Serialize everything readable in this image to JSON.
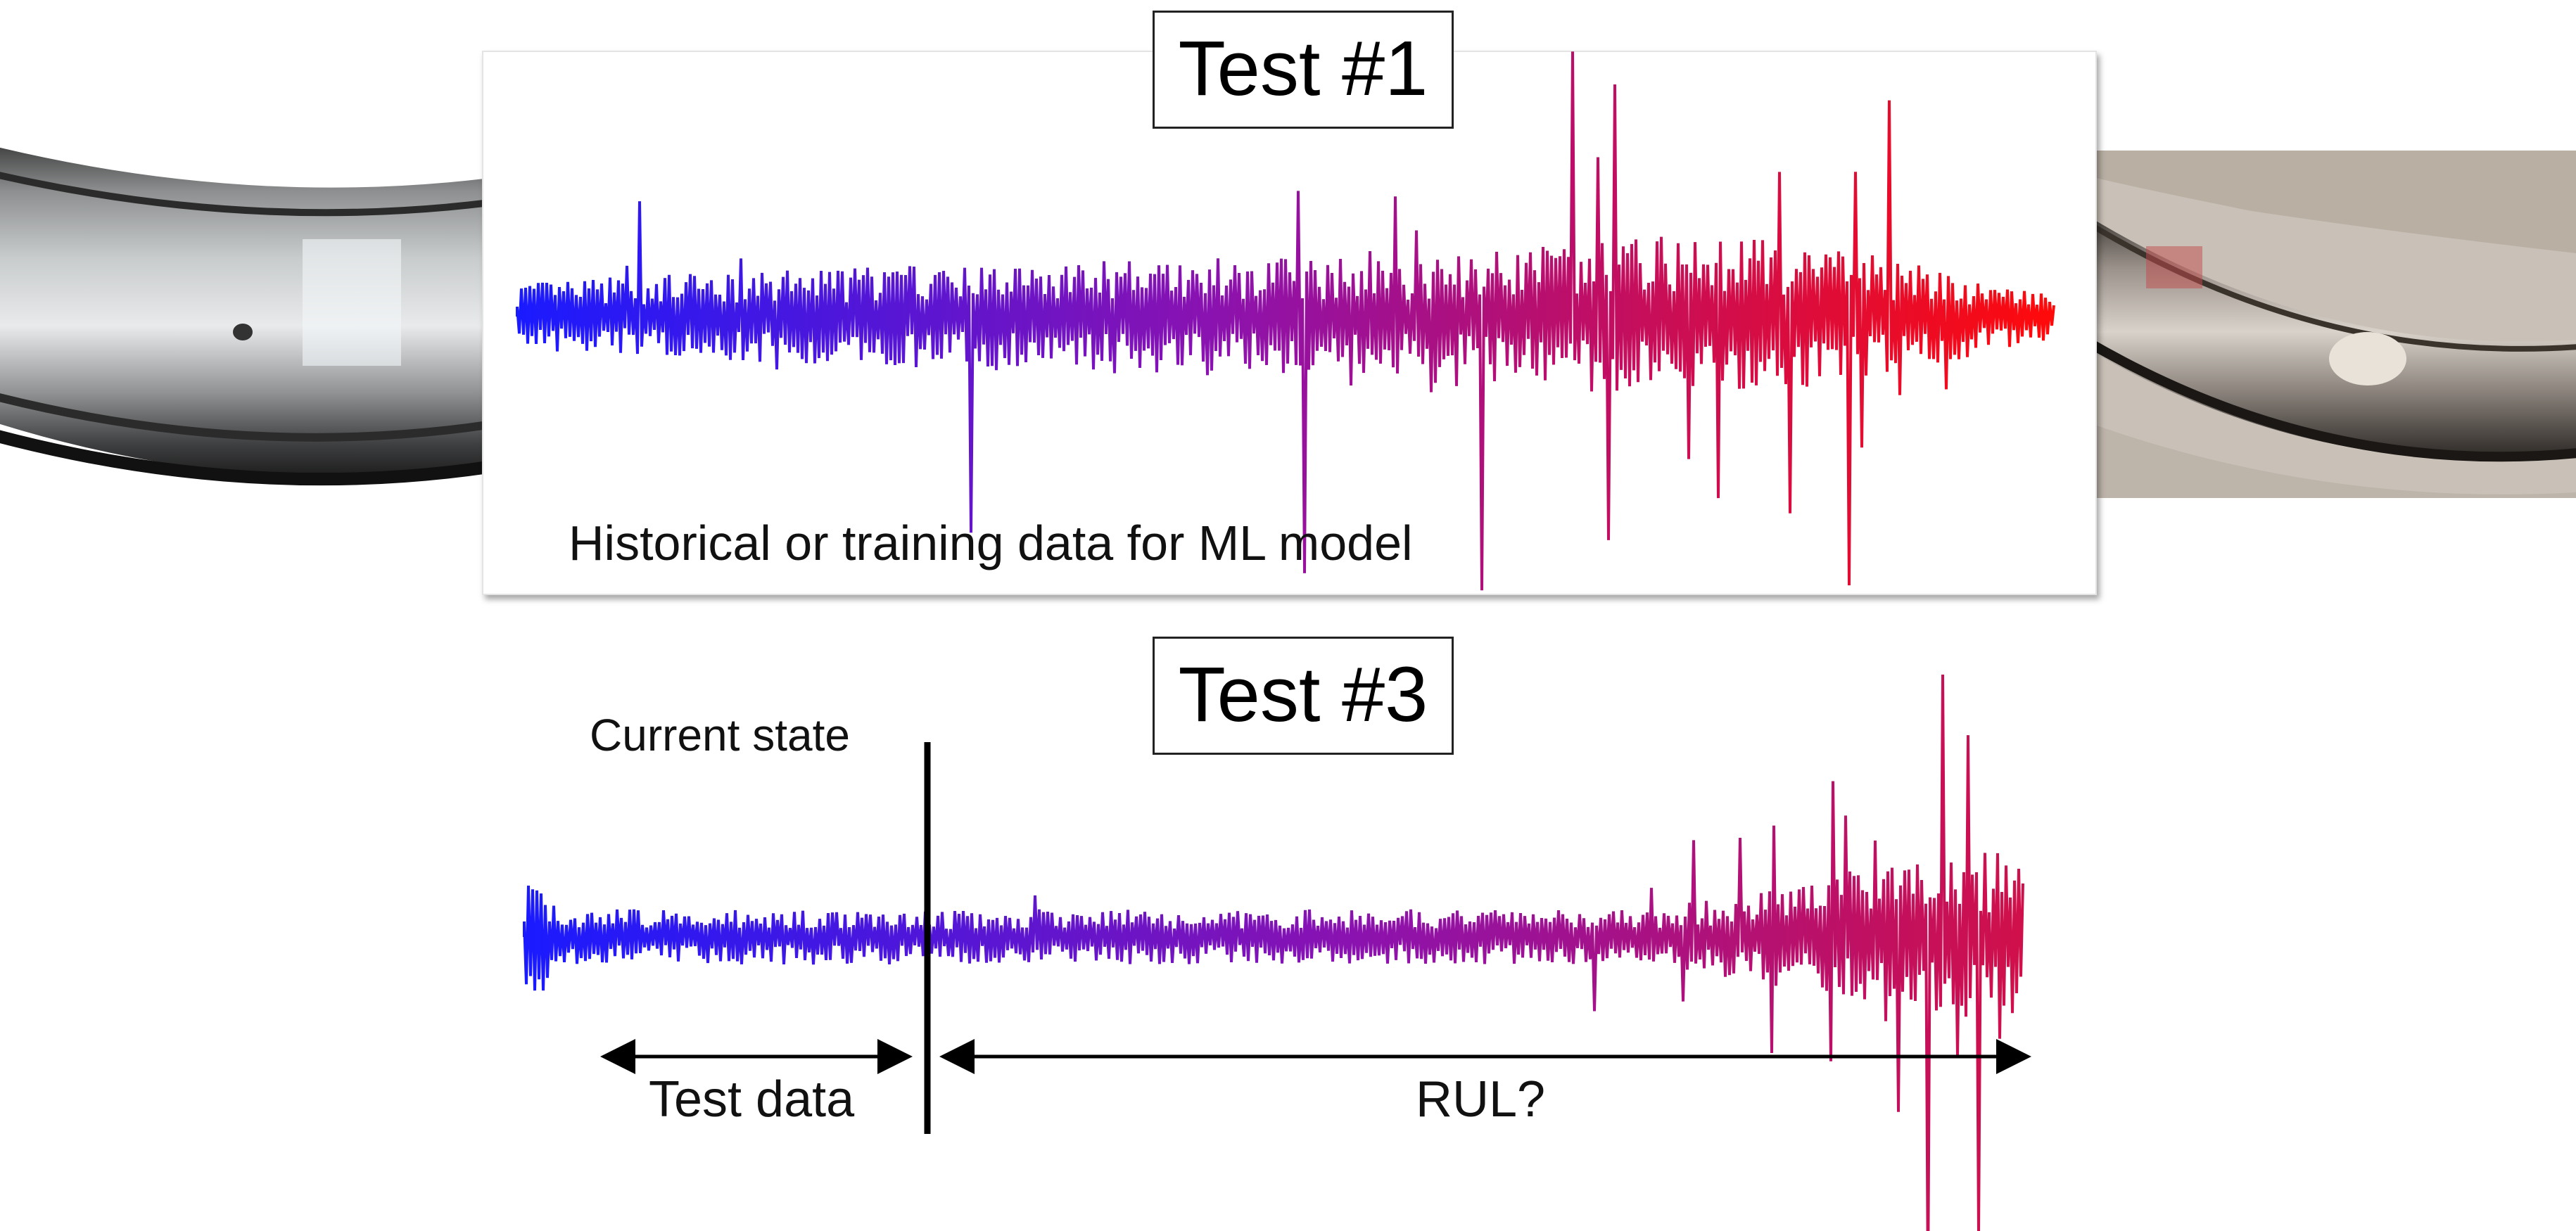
{
  "test1": {
    "title": "Test #1",
    "caption": "Historical or training data for ML model"
  },
  "test3": {
    "title": "Test #3",
    "current_state_label": "Current state",
    "test_data_label": "Test data",
    "rul_label": "RUL?"
  },
  "images": {
    "left": "healthy bearing outer race",
    "right": "damaged bearing outer race"
  },
  "colors": {
    "signal_start": "#1a1aff",
    "signal_mid": "#8a12b0",
    "signal_end1": "#ff0a0a",
    "signal_end3": "#d0104a"
  }
}
